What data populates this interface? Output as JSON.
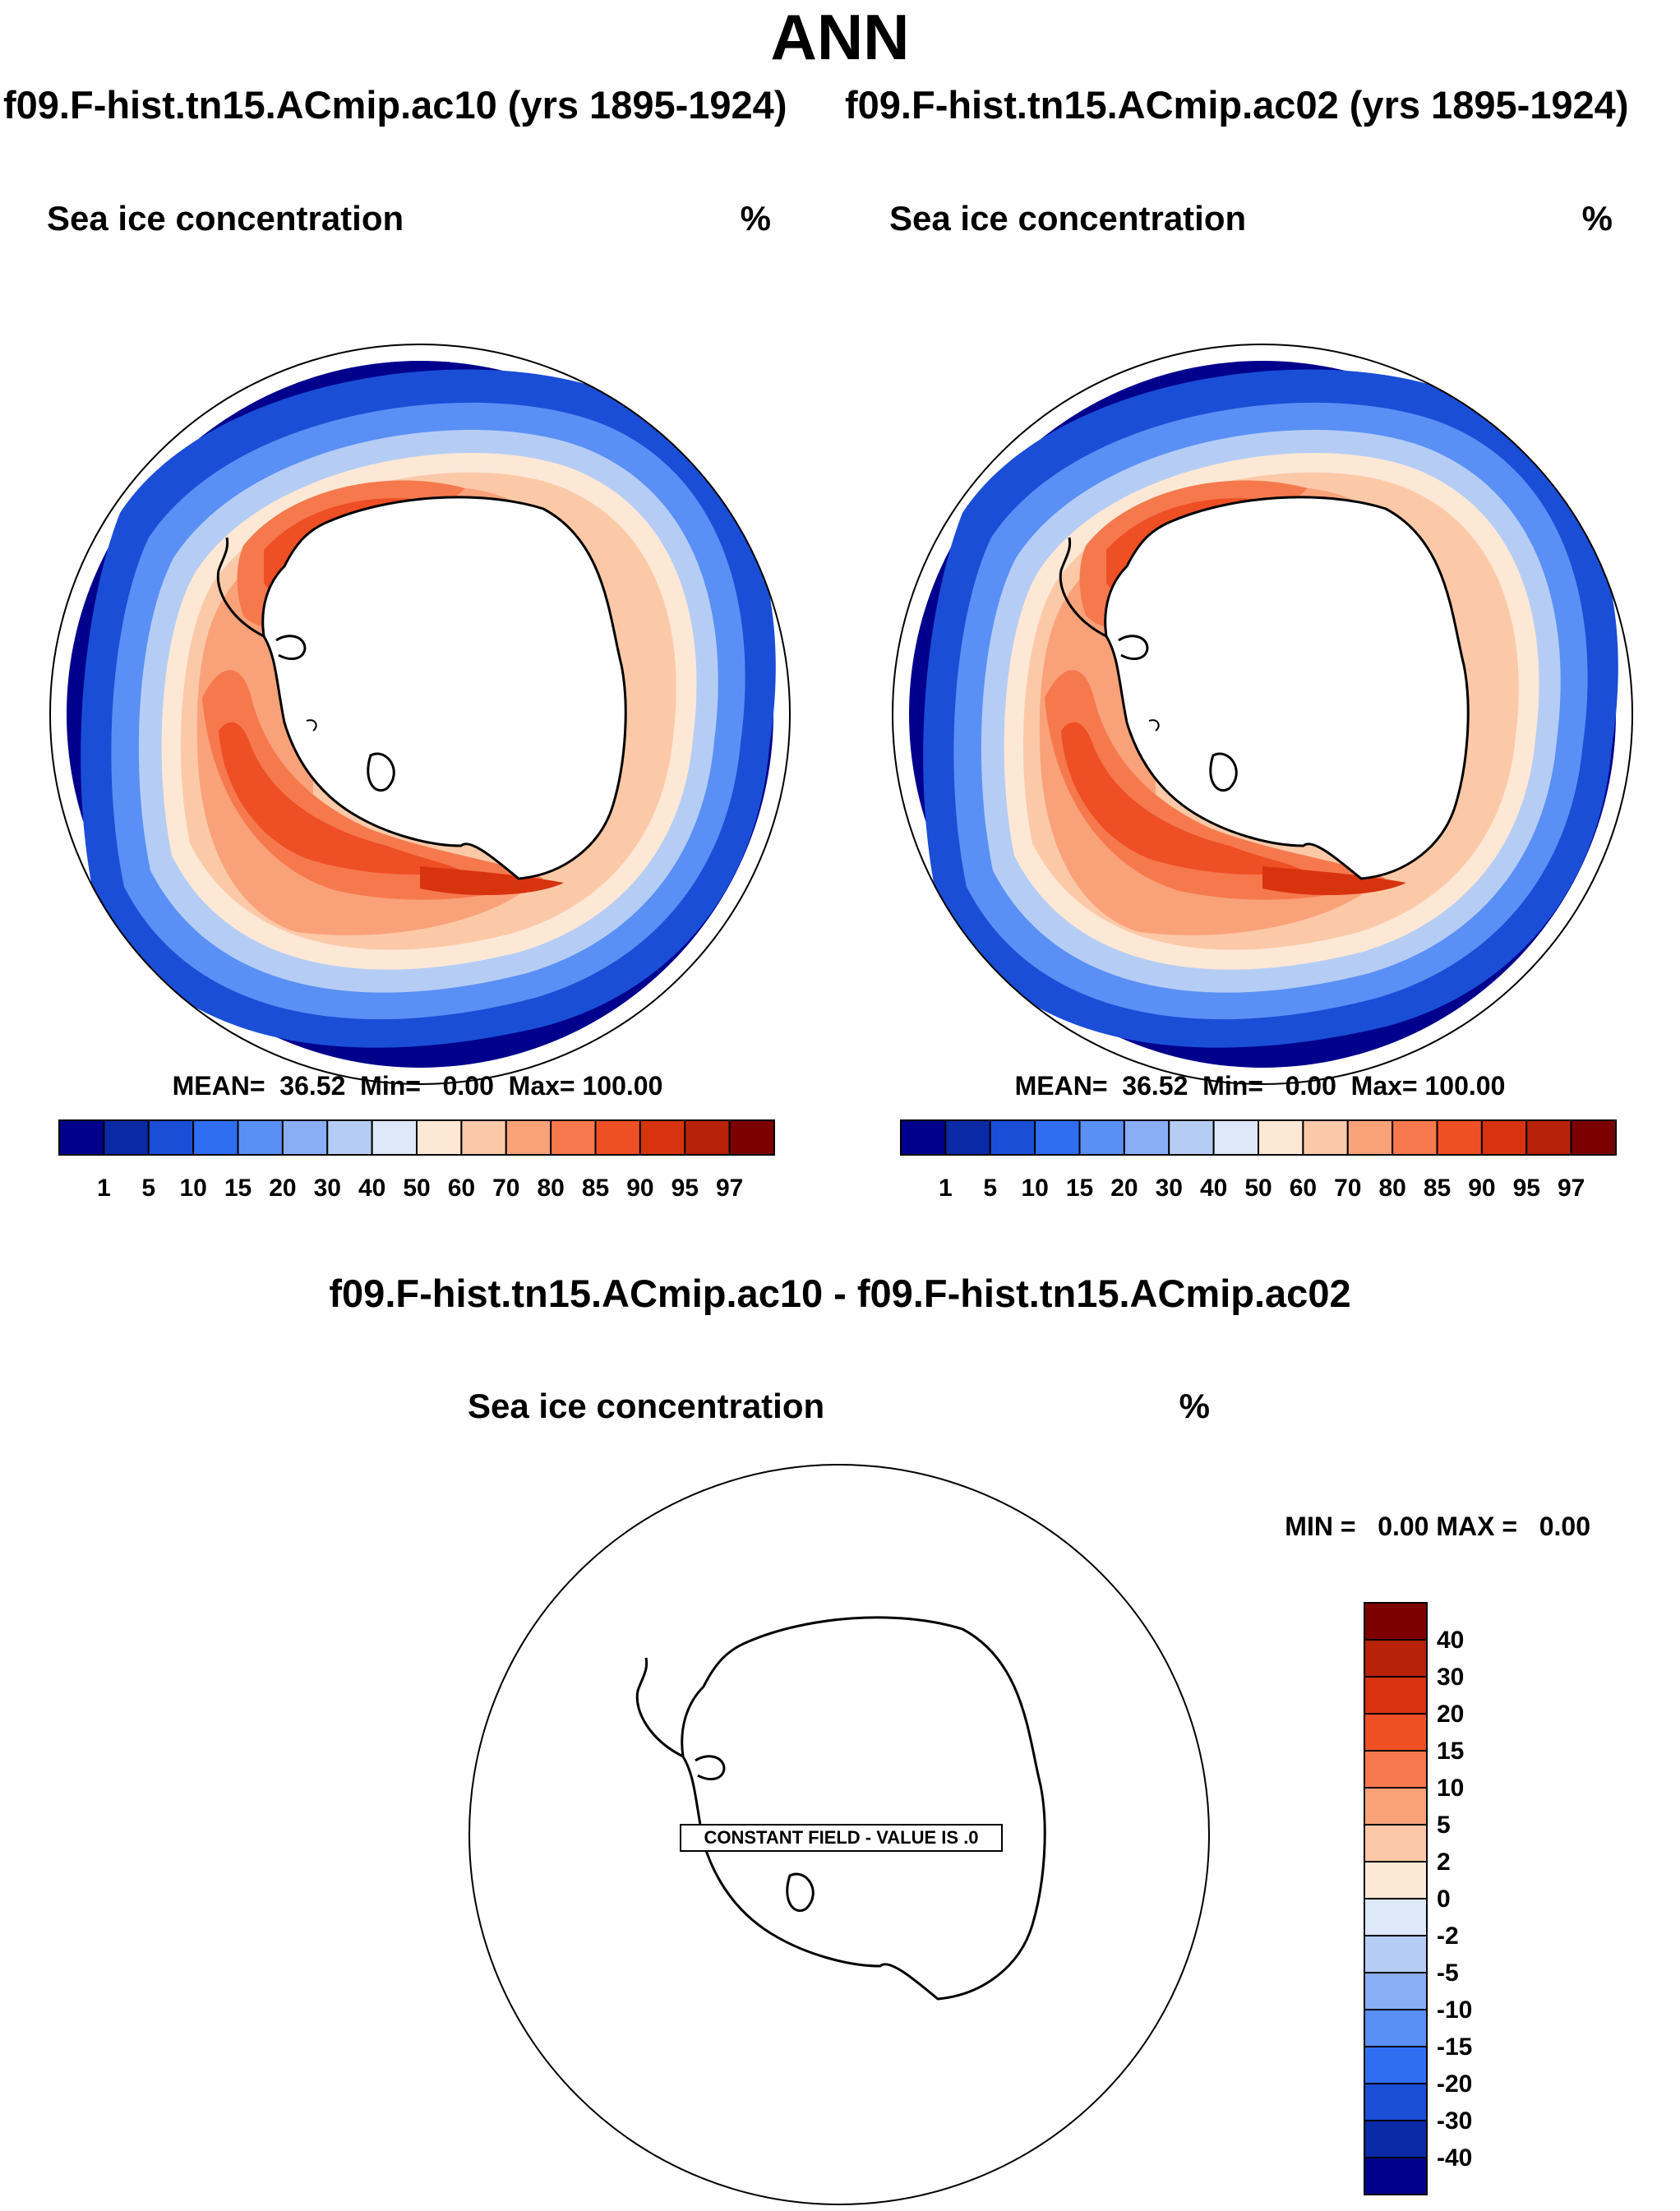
{
  "page": {
    "main_title": "ANN",
    "case_titles": [
      "f09.F-hist.tn15.ACmip.ac10 (yrs 1895-1924)",
      "f09.F-hist.tn15.ACmip.ac02 (yrs 1895-1924)"
    ],
    "diff_title": "f09.F-hist.tn15.ACmip.ac10 - f09.F-hist.tn15.ACmip.ac02"
  },
  "colors": {
    "conc_levels": [
      "#00008c",
      "#0a2aa6",
      "#1a4ed6",
      "#2f6ef0",
      "#5a8ff5",
      "#88aef5",
      "#b5cdf5",
      "#dde9f8",
      "#fde8d6",
      "#fcc9a8",
      "#f9a27a",
      "#f6794e",
      "#ef4f25",
      "#d8330f",
      "#b72208",
      "#7c0000"
    ],
    "diff_levels": [
      "#00008c",
      "#0a2aa6",
      "#1a4ed6",
      "#2f6ef0",
      "#5a8ff5",
      "#88aef5",
      "#b5cdf5",
      "#dde9f8",
      "#fde8d6",
      "#fcc9a8",
      "#f9a27a",
      "#f6794e",
      "#ef4f25",
      "#d8330f",
      "#b72208",
      "#7c0000"
    ]
  },
  "chart_data": [
    {
      "type": "heatmap",
      "title": "Sea ice concentration",
      "units": "%",
      "projection": "south polar stereographic",
      "stats": {
        "mean": "36.52",
        "min": "0.00",
        "max": "100.00"
      },
      "stats_text": "MEAN=  36.52  Min=   0.00  Max= 100.00",
      "colorbar_ticks": [
        "1",
        "5",
        "10",
        "15",
        "20",
        "30",
        "40",
        "50",
        "60",
        "70",
        "80",
        "85",
        "90",
        "95",
        "97"
      ]
    },
    {
      "type": "heatmap",
      "title": "Sea ice concentration",
      "units": "%",
      "projection": "south polar stereographic",
      "stats": {
        "mean": "36.52",
        "min": "0.00",
        "max": "100.00"
      },
      "stats_text": "MEAN=  36.52  Min=   0.00  Max= 100.00",
      "colorbar_ticks": [
        "1",
        "5",
        "10",
        "15",
        "20",
        "30",
        "40",
        "50",
        "60",
        "70",
        "80",
        "85",
        "90",
        "95",
        "97"
      ]
    },
    {
      "type": "heatmap",
      "title": "Sea ice concentration",
      "units": "%",
      "projection": "south polar stereographic",
      "stats": {
        "min": "0.00",
        "max": "0.00"
      },
      "stats_text": "MIN =   0.00 MAX =   0.00",
      "constant_field_text": "CONSTANT FIELD - VALUE IS .0",
      "colorbar_ticks": [
        "40",
        "30",
        "20",
        "15",
        "10",
        "5",
        "2",
        "0",
        "-2",
        "-5",
        "-10",
        "-15",
        "-20",
        "-30",
        "-40"
      ]
    }
  ]
}
